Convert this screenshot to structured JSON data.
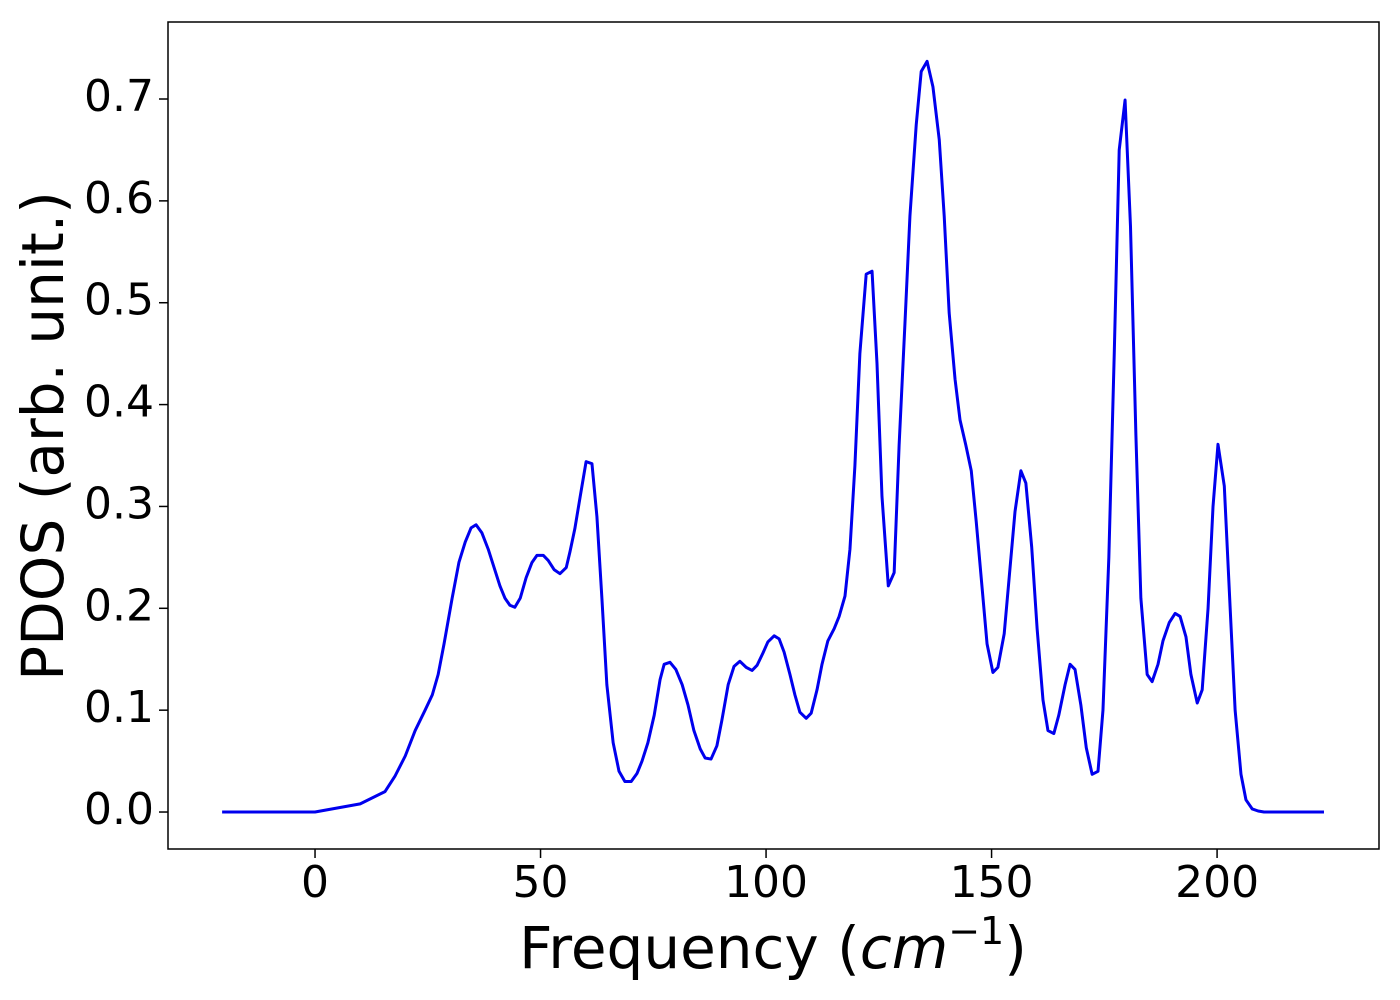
{
  "chart_data": {
    "type": "line",
    "xlabel": {
      "text": "Frequency (",
      "math": "cm",
      "sup": "−1",
      "close": ")"
    },
    "ylabel": "PDOS (arb. unit.)",
    "color": "#0000ee",
    "x": [
      -20.6,
      0,
      10,
      15.5,
      17.7,
      20,
      22.2,
      24.4,
      26,
      27.3,
      28.6,
      30.4,
      31.9,
      33.3,
      34.6,
      35.7,
      37,
      38.4,
      39.7,
      41,
      42.1,
      43.2,
      44.3,
      45.5,
      46.8,
      48.1,
      49.2,
      50.6,
      51.7,
      53,
      54.3,
      55.7,
      56.5,
      57.6,
      58.8,
      60.1,
      61.4,
      62.5,
      63.6,
      64.7,
      66.1,
      67.4,
      68.7,
      70.1,
      71.4,
      72.5,
      73.8,
      75.2,
      76.5,
      77.4,
      78.7,
      80,
      81.4,
      82.7,
      84,
      85.4,
      86.5,
      87.8,
      89.1,
      90.2,
      91.6,
      92.9,
      94.2,
      95.6,
      96.9,
      98,
      99.3,
      100.4,
      101.8,
      102.9,
      104,
      105.3,
      106.4,
      107.5,
      108.9,
      110,
      111.3,
      112.4,
      113.7,
      115.1,
      116.2,
      117.5,
      118.6,
      119.7,
      120.8,
      122.2,
      123.5,
      124.6,
      125.7,
      127.1,
      128.4,
      129.5,
      130.8,
      131.9,
      133.3,
      134.4,
      135.7,
      137,
      138.4,
      139.5,
      140.6,
      141.9,
      143,
      144.3,
      145.5,
      146.6,
      147.9,
      149,
      150.3,
      151.4,
      152.8,
      153.9,
      155.2,
      156.5,
      157.6,
      158.9,
      160.1,
      161.4,
      162.5,
      163.8,
      164.9,
      166.3,
      167.4,
      168.5,
      169.8,
      171,
      172.3,
      173.6,
      174.7,
      176,
      177.2,
      178.3,
      179.6,
      180.8,
      182,
      183.1,
      184.5,
      185.6,
      186.9,
      188,
      189.4,
      190.7,
      191.8,
      193.1,
      194.2,
      195.6,
      196.7,
      198,
      199.1,
      200.2,
      201.6,
      202.9,
      204,
      205.3,
      206.4,
      207.8,
      209.1,
      210.4,
      223.7
    ],
    "values": [
      0,
      0,
      0.008,
      0.02,
      0.035,
      0.055,
      0.08,
      0.1,
      0.115,
      0.135,
      0.165,
      0.21,
      0.245,
      0.265,
      0.279,
      0.282,
      0.274,
      0.258,
      0.24,
      0.222,
      0.21,
      0.203,
      0.201,
      0.21,
      0.23,
      0.245,
      0.252,
      0.252,
      0.247,
      0.238,
      0.234,
      0.24,
      0.255,
      0.278,
      0.31,
      0.344,
      0.342,
      0.29,
      0.21,
      0.125,
      0.068,
      0.04,
      0.03,
      0.03,
      0.038,
      0.05,
      0.068,
      0.095,
      0.13,
      0.145,
      0.147,
      0.14,
      0.125,
      0.105,
      0.08,
      0.062,
      0.053,
      0.052,
      0.065,
      0.09,
      0.125,
      0.143,
      0.148,
      0.142,
      0.139,
      0.144,
      0.156,
      0.167,
      0.173,
      0.17,
      0.157,
      0.135,
      0.115,
      0.098,
      0.092,
      0.097,
      0.12,
      0.145,
      0.168,
      0.18,
      0.192,
      0.212,
      0.258,
      0.34,
      0.45,
      0.528,
      0.531,
      0.44,
      0.31,
      0.222,
      0.235,
      0.36,
      0.48,
      0.585,
      0.675,
      0.727,
      0.737,
      0.712,
      0.66,
      0.585,
      0.49,
      0.425,
      0.385,
      0.36,
      0.335,
      0.285,
      0.22,
      0.165,
      0.137,
      0.142,
      0.175,
      0.23,
      0.295,
      0.335,
      0.323,
      0.26,
      0.18,
      0.11,
      0.08,
      0.077,
      0.095,
      0.125,
      0.145,
      0.14,
      0.105,
      0.063,
      0.037,
      0.04,
      0.1,
      0.25,
      0.45,
      0.65,
      0.699,
      0.575,
      0.37,
      0.21,
      0.135,
      0.128,
      0.145,
      0.168,
      0.186,
      0.195,
      0.192,
      0.172,
      0.135,
      0.107,
      0.12,
      0.2,
      0.3,
      0.361,
      0.32,
      0.2,
      0.1,
      0.037,
      0.012,
      0.003,
      0.001,
      0,
      0
    ],
    "xlim": [
      -32.6,
      235.9
    ],
    "ylim": [
      -0.0363,
      0.7756
    ],
    "xticks": [
      0,
      50,
      100,
      150,
      200
    ],
    "yticks": [
      {
        "value": 0,
        "label": "0.0"
      },
      0.1,
      0.2,
      0.3,
      0.4,
      0.5,
      0.6,
      0.7
    ]
  }
}
